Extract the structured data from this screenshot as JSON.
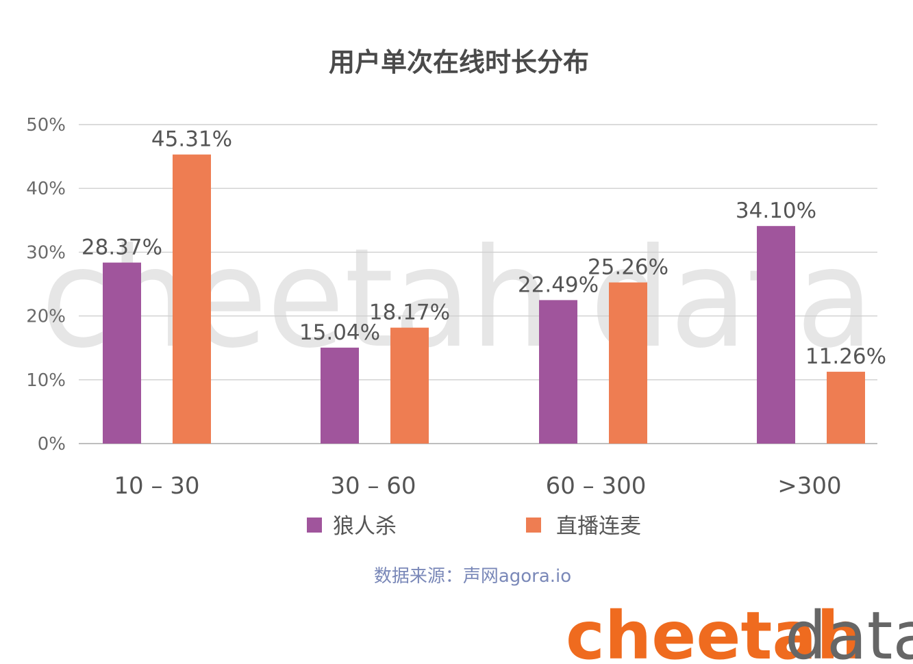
{
  "title": "用户单次在线时长分布",
  "source": "数据来源：声网agora.io",
  "logo": {
    "part1": "cheetah",
    "part2": "data"
  },
  "watermark": "cheetah data",
  "colors": {
    "series1": "#a0559c",
    "series2": "#ee7d52",
    "grid": "#cfcfcf",
    "source_text": "#7a88b8",
    "logo_orange": "#ef6b1f"
  },
  "chart_data": {
    "type": "bar",
    "title": "用户单次在线时长分布",
    "categories": [
      "10 – 30",
      "30 –  60",
      "60 – 300",
      ">300"
    ],
    "series": [
      {
        "name": "狼人杀",
        "values": [
          28.37,
          15.04,
          22.49,
          34.1
        ],
        "labels": [
          "28.37%",
          "15.04%",
          "22.49%",
          "34.10%"
        ],
        "color": "#a0559c"
      },
      {
        "name": "直播连麦",
        "values": [
          45.31,
          18.17,
          25.26,
          11.26
        ],
        "labels": [
          "45.31%",
          "18.17%",
          "25.26%",
          "11.26%"
        ],
        "color": "#ee7d52"
      }
    ],
    "yticks": [
      "0%",
      "10%",
      "20%",
      "30%",
      "40%",
      "50%"
    ],
    "ylim": [
      0,
      50
    ],
    "grid": true,
    "legend": "bottom-center"
  }
}
